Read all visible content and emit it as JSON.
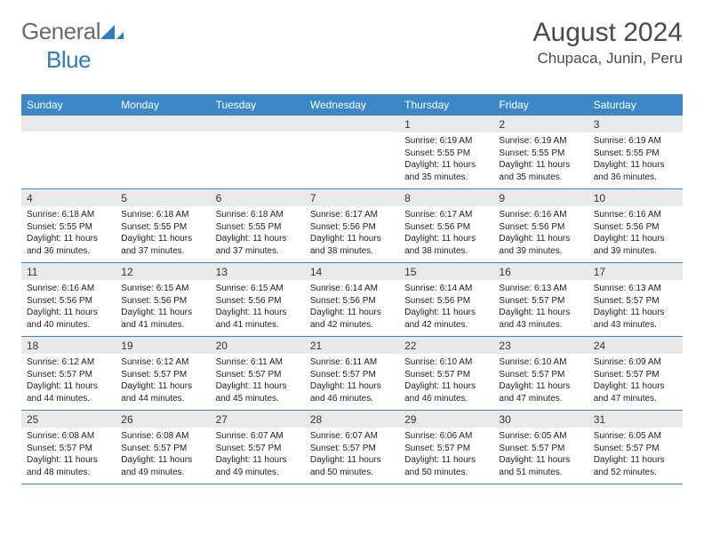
{
  "brand": {
    "part1": "General",
    "part2": "Blue"
  },
  "title": "August 2024",
  "location": "Chupaca, Junin, Peru",
  "colors": {
    "header_bg": "#3b87c8",
    "header_text": "#ffffff",
    "daynum_bg": "#e9e9e9",
    "border": "#3b87c8",
    "title_text": "#4a4a4a",
    "logo_gray": "#6b6b6b",
    "logo_blue": "#2f7bbf",
    "body_text": "#222222"
  },
  "dow": [
    "Sunday",
    "Monday",
    "Tuesday",
    "Wednesday",
    "Thursday",
    "Friday",
    "Saturday"
  ],
  "weeks": [
    [
      {
        "n": "",
        "sr": "",
        "ss": "",
        "dl": ""
      },
      {
        "n": "",
        "sr": "",
        "ss": "",
        "dl": ""
      },
      {
        "n": "",
        "sr": "",
        "ss": "",
        "dl": ""
      },
      {
        "n": "",
        "sr": "",
        "ss": "",
        "dl": ""
      },
      {
        "n": "1",
        "sr": "6:19 AM",
        "ss": "5:55 PM",
        "dl": "11 hours and 35 minutes."
      },
      {
        "n": "2",
        "sr": "6:19 AM",
        "ss": "5:55 PM",
        "dl": "11 hours and 35 minutes."
      },
      {
        "n": "3",
        "sr": "6:19 AM",
        "ss": "5:55 PM",
        "dl": "11 hours and 36 minutes."
      }
    ],
    [
      {
        "n": "4",
        "sr": "6:18 AM",
        "ss": "5:55 PM",
        "dl": "11 hours and 36 minutes."
      },
      {
        "n": "5",
        "sr": "6:18 AM",
        "ss": "5:55 PM",
        "dl": "11 hours and 37 minutes."
      },
      {
        "n": "6",
        "sr": "6:18 AM",
        "ss": "5:55 PM",
        "dl": "11 hours and 37 minutes."
      },
      {
        "n": "7",
        "sr": "6:17 AM",
        "ss": "5:56 PM",
        "dl": "11 hours and 38 minutes."
      },
      {
        "n": "8",
        "sr": "6:17 AM",
        "ss": "5:56 PM",
        "dl": "11 hours and 38 minutes."
      },
      {
        "n": "9",
        "sr": "6:16 AM",
        "ss": "5:56 PM",
        "dl": "11 hours and 39 minutes."
      },
      {
        "n": "10",
        "sr": "6:16 AM",
        "ss": "5:56 PM",
        "dl": "11 hours and 39 minutes."
      }
    ],
    [
      {
        "n": "11",
        "sr": "6:16 AM",
        "ss": "5:56 PM",
        "dl": "11 hours and 40 minutes."
      },
      {
        "n": "12",
        "sr": "6:15 AM",
        "ss": "5:56 PM",
        "dl": "11 hours and 41 minutes."
      },
      {
        "n": "13",
        "sr": "6:15 AM",
        "ss": "5:56 PM",
        "dl": "11 hours and 41 minutes."
      },
      {
        "n": "14",
        "sr": "6:14 AM",
        "ss": "5:56 PM",
        "dl": "11 hours and 42 minutes."
      },
      {
        "n": "15",
        "sr": "6:14 AM",
        "ss": "5:56 PM",
        "dl": "11 hours and 42 minutes."
      },
      {
        "n": "16",
        "sr": "6:13 AM",
        "ss": "5:57 PM",
        "dl": "11 hours and 43 minutes."
      },
      {
        "n": "17",
        "sr": "6:13 AM",
        "ss": "5:57 PM",
        "dl": "11 hours and 43 minutes."
      }
    ],
    [
      {
        "n": "18",
        "sr": "6:12 AM",
        "ss": "5:57 PM",
        "dl": "11 hours and 44 minutes."
      },
      {
        "n": "19",
        "sr": "6:12 AM",
        "ss": "5:57 PM",
        "dl": "11 hours and 44 minutes."
      },
      {
        "n": "20",
        "sr": "6:11 AM",
        "ss": "5:57 PM",
        "dl": "11 hours and 45 minutes."
      },
      {
        "n": "21",
        "sr": "6:11 AM",
        "ss": "5:57 PM",
        "dl": "11 hours and 46 minutes."
      },
      {
        "n": "22",
        "sr": "6:10 AM",
        "ss": "5:57 PM",
        "dl": "11 hours and 46 minutes."
      },
      {
        "n": "23",
        "sr": "6:10 AM",
        "ss": "5:57 PM",
        "dl": "11 hours and 47 minutes."
      },
      {
        "n": "24",
        "sr": "6:09 AM",
        "ss": "5:57 PM",
        "dl": "11 hours and 47 minutes."
      }
    ],
    [
      {
        "n": "25",
        "sr": "6:08 AM",
        "ss": "5:57 PM",
        "dl": "11 hours and 48 minutes."
      },
      {
        "n": "26",
        "sr": "6:08 AM",
        "ss": "5:57 PM",
        "dl": "11 hours and 49 minutes."
      },
      {
        "n": "27",
        "sr": "6:07 AM",
        "ss": "5:57 PM",
        "dl": "11 hours and 49 minutes."
      },
      {
        "n": "28",
        "sr": "6:07 AM",
        "ss": "5:57 PM",
        "dl": "11 hours and 50 minutes."
      },
      {
        "n": "29",
        "sr": "6:06 AM",
        "ss": "5:57 PM",
        "dl": "11 hours and 50 minutes."
      },
      {
        "n": "30",
        "sr": "6:05 AM",
        "ss": "5:57 PM",
        "dl": "11 hours and 51 minutes."
      },
      {
        "n": "31",
        "sr": "6:05 AM",
        "ss": "5:57 PM",
        "dl": "11 hours and 52 minutes."
      }
    ]
  ],
  "labels": {
    "sunrise": "Sunrise: ",
    "sunset": "Sunset: ",
    "daylight": "Daylight: "
  }
}
